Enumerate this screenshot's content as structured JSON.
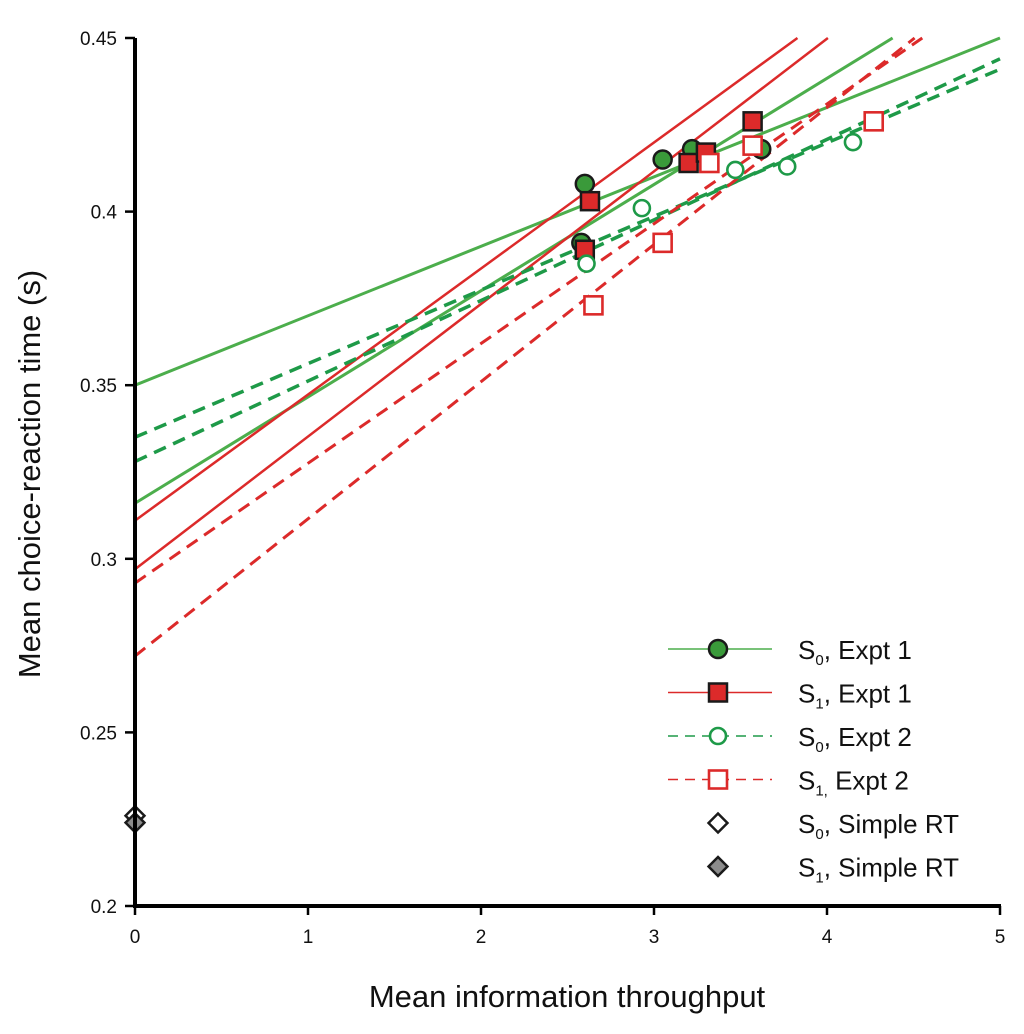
{
  "chart_data": {
    "type": "scatter",
    "title": "",
    "xlabel": "Mean information throughput",
    "ylabel": "Mean choice-reaction time (s)",
    "xlim": [
      0,
      5
    ],
    "ylim": [
      0.2,
      0.45
    ],
    "xticks": [
      0,
      1,
      2,
      3,
      4,
      5
    ],
    "xtick_labels": [
      "0",
      "1",
      "2",
      "3",
      "4",
      "5"
    ],
    "yticks": [
      0.2,
      0.25,
      0.3,
      0.35,
      0.4,
      0.45
    ],
    "ytick_labels": [
      "0.2",
      "0.25",
      "0.3",
      "0.35",
      "0.4",
      "0.45"
    ],
    "grid": false,
    "legend_position": "bottom-right",
    "colors": {
      "green_solid": "#4cae4c",
      "green_marker": "#3a9a3a",
      "green_dashed": "#1e9a48",
      "red": "#dc2a2a",
      "gray": "#8c8c8c",
      "axis": "#000000"
    },
    "series": [
      {
        "name": "S0, Expt 1",
        "legend": {
          "base": "S",
          "sub": "0",
          "rest": ", Expt 1"
        },
        "marker": "circle",
        "filled": true,
        "line_style": "solid",
        "points": [
          {
            "x": 2.58,
            "y": 0.391
          },
          {
            "x": 2.6,
            "y": 0.408
          },
          {
            "x": 3.05,
            "y": 0.415
          },
          {
            "x": 3.22,
            "y": 0.418
          },
          {
            "x": 3.62,
            "y": 0.418
          }
        ],
        "fits": [
          {
            "intercept": 0.35,
            "slope": 0.02
          },
          {
            "intercept": 0.316,
            "slope": 0.0306
          }
        ]
      },
      {
        "name": "S1, Expt 1",
        "legend": {
          "base": "S",
          "sub": "1",
          "rest": ", Expt 1"
        },
        "marker": "square",
        "filled": true,
        "line_style": "solid",
        "points": [
          {
            "x": 2.6,
            "y": 0.389
          },
          {
            "x": 2.63,
            "y": 0.403
          },
          {
            "x": 3.2,
            "y": 0.414
          },
          {
            "x": 3.3,
            "y": 0.417
          },
          {
            "x": 3.57,
            "y": 0.426
          }
        ],
        "fits": [
          {
            "intercept": 0.297,
            "slope": 0.0382
          },
          {
            "intercept": 0.311,
            "slope": 0.0363
          }
        ]
      },
      {
        "name": "S0, Expt 2",
        "legend": {
          "base": "S",
          "sub": "0",
          "rest": ", Expt 2"
        },
        "marker": "circle",
        "filled": false,
        "line_style": "dashed",
        "points": [
          {
            "x": 2.61,
            "y": 0.385
          },
          {
            "x": 2.93,
            "y": 0.401
          },
          {
            "x": 3.47,
            "y": 0.412
          },
          {
            "x": 3.77,
            "y": 0.413
          },
          {
            "x": 4.15,
            "y": 0.42
          }
        ],
        "fits": [
          {
            "intercept": 0.335,
            "slope": 0.0212
          },
          {
            "intercept": 0.328,
            "slope": 0.0232
          }
        ]
      },
      {
        "name": "S1, Expt 2",
        "legend": {
          "base": "S",
          "sub": "1,",
          "rest": " Expt 2"
        },
        "marker": "square",
        "filled": false,
        "line_style": "dashed",
        "points": [
          {
            "x": 2.65,
            "y": 0.373
          },
          {
            "x": 3.05,
            "y": 0.391
          },
          {
            "x": 3.32,
            "y": 0.414
          },
          {
            "x": 3.57,
            "y": 0.419
          },
          {
            "x": 4.27,
            "y": 0.426
          }
        ],
        "fits": [
          {
            "intercept": 0.293,
            "slope": 0.0345
          },
          {
            "intercept": 0.272,
            "slope": 0.0395
          }
        ]
      },
      {
        "name": "S0, Simple RT",
        "legend": {
          "base": "S",
          "sub": "0",
          "rest": ", Simple RT"
        },
        "marker": "diamond",
        "filled": false,
        "line_style": "none",
        "points": [
          {
            "x": 0,
            "y": 0.226
          }
        ],
        "fits": []
      },
      {
        "name": "S1, Simple RT",
        "legend": {
          "base": "S",
          "sub": "1",
          "rest": ", Simple RT"
        },
        "marker": "diamond",
        "filled": true,
        "line_style": "none",
        "points": [
          {
            "x": 0,
            "y": 0.224
          }
        ],
        "fits": []
      }
    ]
  }
}
